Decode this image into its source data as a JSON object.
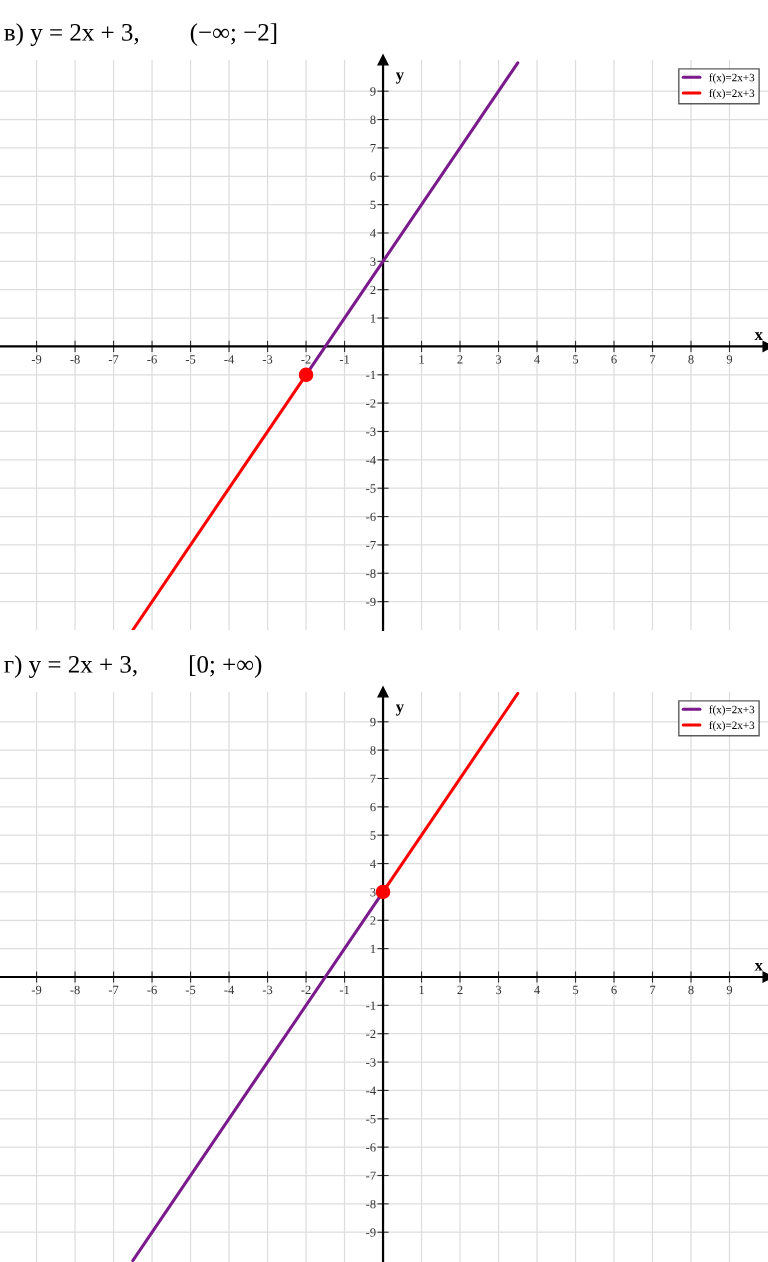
{
  "chart_data": [
    {
      "type": "line",
      "title": "в) y = 2x + 3,        (−∞; −2]",
      "xlabel": "x",
      "ylabel": "y",
      "xlim": [
        -9.95,
        10
      ],
      "ylim": [
        -10,
        10.1
      ],
      "xticks": [
        -9,
        -8,
        -7,
        -6,
        -5,
        -4,
        -3,
        -2,
        -1,
        1,
        2,
        3,
        4,
        5,
        6,
        7,
        8,
        9
      ],
      "yticks": [
        -9,
        -8,
        -7,
        -6,
        -5,
        -4,
        -3,
        -2,
        -1,
        1,
        2,
        3,
        4,
        5,
        6,
        7,
        8,
        9
      ],
      "grid": true,
      "legend": "top right",
      "marker": "none",
      "line_style": "solid",
      "series": [
        {
          "name": "f(x)=2x+3",
          "color": "#7a1a8c",
          "x": [
            -2,
            3.5
          ],
          "values": [
            -1,
            10
          ]
        },
        {
          "name": "f(x)=2x+3",
          "color": "#ff0000",
          "x": [
            -6.5,
            -2
          ],
          "values": [
            -10,
            -1
          ]
        },
        {
          "type": "scatter",
          "color": "#ff0000",
          "marker": "circle",
          "x": [
            -2
          ],
          "values": [
            -1
          ]
        }
      ]
    },
    {
      "type": "line",
      "title": "г) y = 2x + 3,        [0; +∞)",
      "xlabel": "x",
      "ylabel": "y",
      "xlim": [
        -9.95,
        10
      ],
      "ylim": [
        -10.05,
        10.05
      ],
      "xticks": [
        -9,
        -8,
        -7,
        -6,
        -5,
        -4,
        -3,
        -2,
        -1,
        1,
        2,
        3,
        4,
        5,
        6,
        7,
        8,
        9
      ],
      "yticks": [
        -9,
        -8,
        -7,
        -6,
        -5,
        -4,
        -3,
        -2,
        -1,
        1,
        2,
        3,
        4,
        5,
        6,
        7,
        8,
        9
      ],
      "grid": true,
      "legend": "top right",
      "marker": "none",
      "line_style": "solid",
      "series": [
        {
          "name": "f(x)=2x+3",
          "color": "#7a1a8c",
          "x": [
            -6.5,
            0
          ],
          "values": [
            -10,
            3
          ]
        },
        {
          "name": "f(x)=2x+3",
          "color": "#ff0000",
          "x": [
            0,
            3.5
          ],
          "values": [
            3,
            10
          ]
        },
        {
          "type": "scatter",
          "color": "#ff0000",
          "marker": "circle",
          "x": [
            0
          ],
          "values": [
            3
          ]
        }
      ]
    }
  ]
}
